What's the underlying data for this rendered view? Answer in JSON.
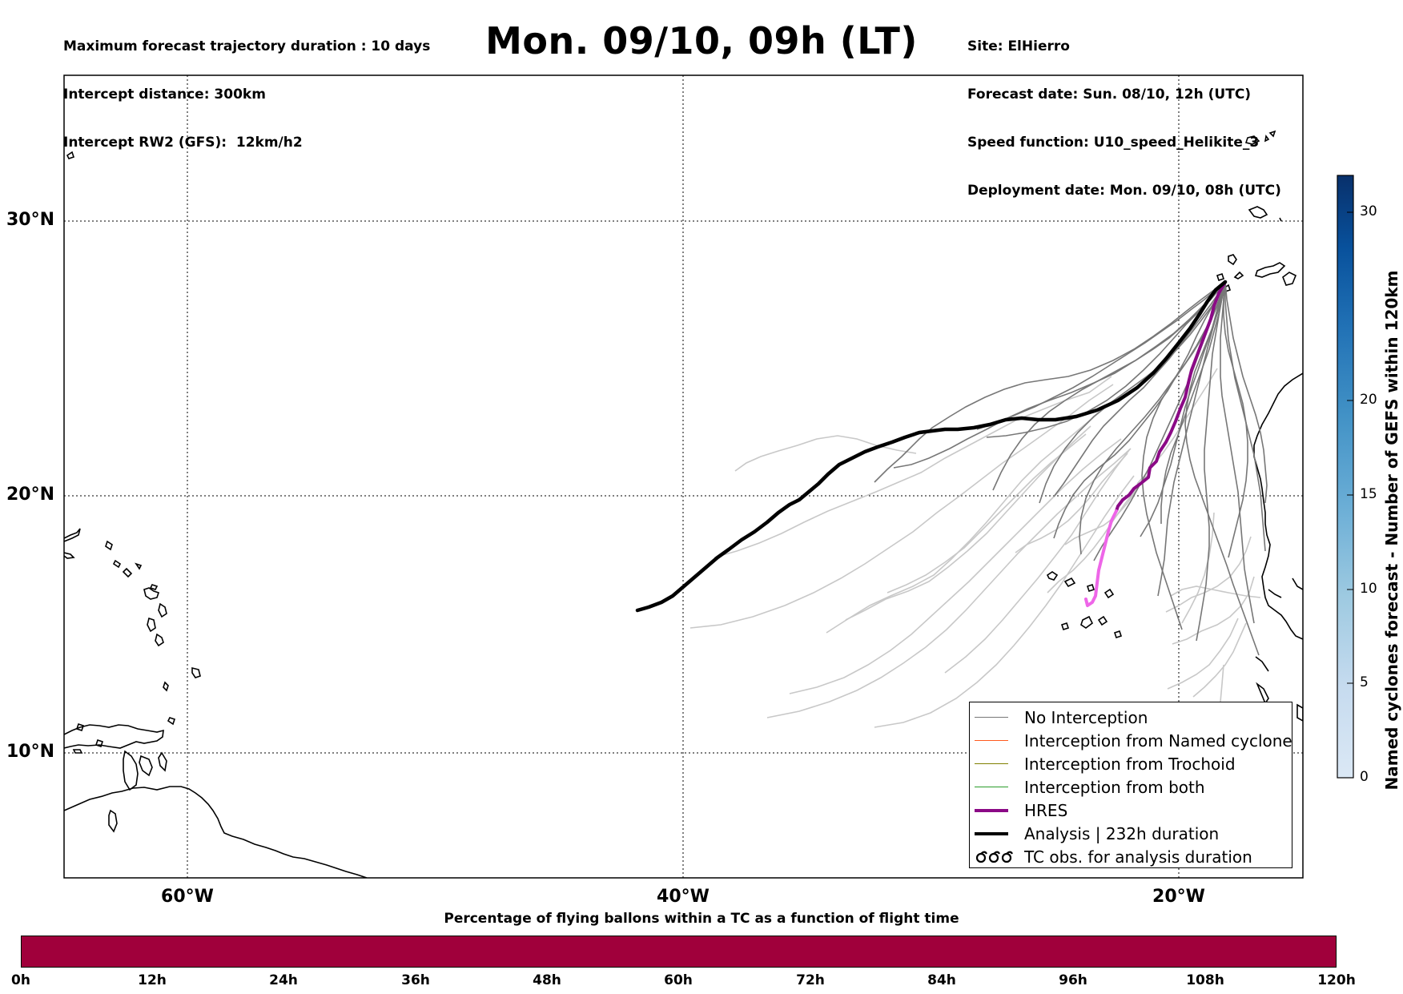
{
  "header_left": {
    "line1": "Maximum forecast trajectory duration : 10 days",
    "line2": "Intercept distance: 300km",
    "line3": "Intercept RW2 (GFS):  12km/h2"
  },
  "title": "Mon. 09/10, 09h (LT)",
  "header_right": {
    "site": "Site: ElHierro",
    "forecast_date": "Forecast date: Sun. 08/10, 12h (UTC)",
    "speed_function": "Speed function: U10_speed_Helikite_3",
    "deployment_date": "Deployment date: Mon. 09/10, 08h (UTC)"
  },
  "map": {
    "lat_labels": [
      "30°N",
      "20°N",
      "10°N"
    ],
    "lon_labels": [
      "60°W",
      "40°W",
      "20°W"
    ],
    "colors": {
      "no_interception": "#777777",
      "named_cyclone": "#ff5a1f",
      "trochoid": "#808000",
      "both": "#2a9d2a",
      "hres": "#8b0a86",
      "hres_tail": "#ee66e8",
      "analysis": "#000000",
      "ensemble_light": "#c8c8c8"
    }
  },
  "legend": {
    "items": [
      {
        "label": "No Interception",
        "color": "#777777"
      },
      {
        "label": "Interception from Named cyclone",
        "color": "#ff5a1f"
      },
      {
        "label": "Interception from Trochoid",
        "color": "#808000"
      },
      {
        "label": "Interception from both",
        "color": "#2a9d2a"
      },
      {
        "label": "HRES",
        "color": "#8b0a86"
      },
      {
        "label": "Analysis | 232h duration",
        "color": "#000000"
      }
    ],
    "tc_obs_label": "TC obs. for analysis duration",
    "tc_obs_glyph": "ೆೆೆ"
  },
  "colorbar": {
    "title": "Named cyclones forecast - Number of GEFS within 120km",
    "ticks": [
      "0",
      "5",
      "10",
      "15",
      "20",
      "30"
    ],
    "colors": [
      "#dbe8f5",
      "#c6dbef",
      "#9ecae1",
      "#6baed6",
      "#4292c6",
      "#2171b5",
      "#08519c",
      "#08306b"
    ]
  },
  "tc_bar": {
    "caption": "Percentage of flying ballons within a TC as a function of flight time",
    "ticks": [
      "0h",
      "12h",
      "24h",
      "36h",
      "48h",
      "60h",
      "72h",
      "84h",
      "96h",
      "108h",
      "120h"
    ],
    "color": "#a0003b"
  }
}
